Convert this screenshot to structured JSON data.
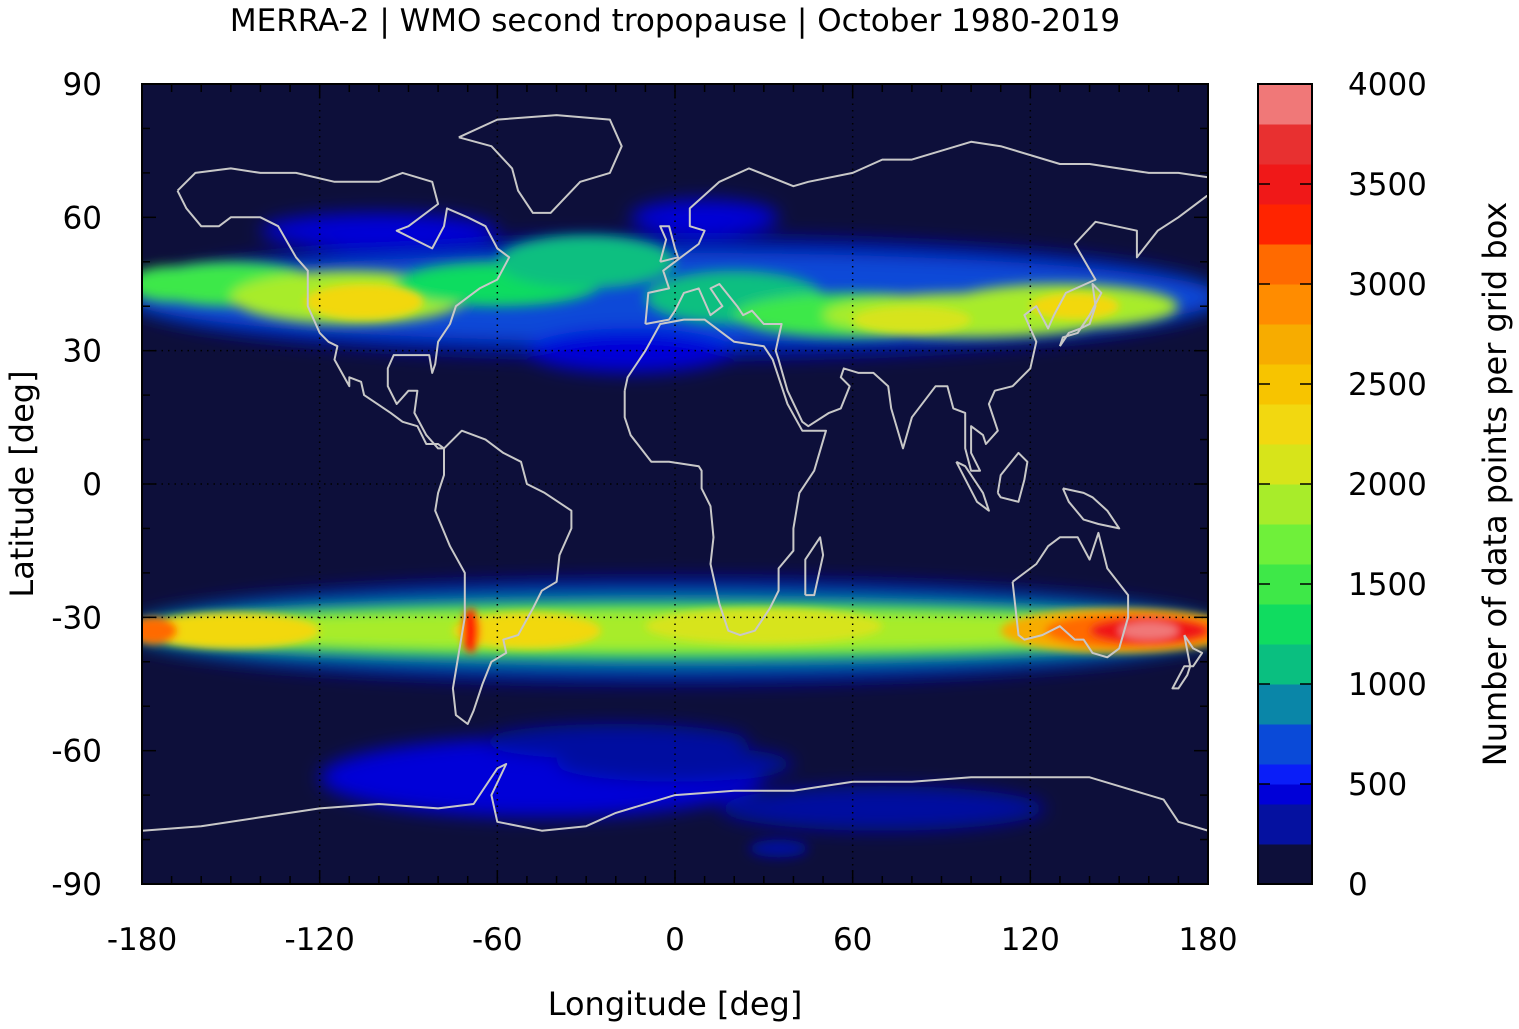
{
  "chart_data": {
    "type": "heatmap",
    "title": "MERRA-2 | WMO second tropopause | October 1980-2019",
    "xlabel": "Longitude [deg]",
    "ylabel": "Latitude [deg]",
    "colorbar_label": "Number of data points per grid box",
    "xlim": [
      -180,
      180
    ],
    "ylim": [
      -90,
      90
    ],
    "x_ticks": [
      -180,
      -120,
      -60,
      0,
      60,
      120,
      180
    ],
    "x_tick_labels": [
      "-180",
      "-120",
      "-60",
      "0",
      "60",
      "120",
      "180"
    ],
    "y_ticks": [
      90,
      60,
      30,
      0,
      -30,
      -60,
      -90
    ],
    "y_tick_labels": [
      "90",
      "60",
      "30",
      "0",
      "-30",
      "-60",
      "-90"
    ],
    "colorbar_ticks": [
      0,
      500,
      1000,
      1500,
      2000,
      2500,
      3000,
      3500,
      4000
    ],
    "colorbar_tick_labels": [
      "0",
      "500",
      "1000",
      "1500",
      "2000",
      "2500",
      "3000",
      "3500",
      "4000"
    ],
    "colorbar_range": [
      0,
      4000
    ],
    "levels": [
      0,
      200,
      400,
      500,
      600,
      800,
      1000,
      1200,
      1400,
      1600,
      1800,
      2000,
      2200,
      2400,
      2600,
      2800,
      3000,
      3200,
      3400,
      3600,
      3800,
      4000
    ],
    "level_colors": [
      "#0d0f3a",
      "#0511a0",
      "#0000d8",
      "#0a1ef8",
      "#0a4ad8",
      "#0a86a8",
      "#0abf80",
      "#10dc60",
      "#3ee848",
      "#6ff03a",
      "#a8ec2a",
      "#d7e41a",
      "#f2d810",
      "#f7c400",
      "#f7ac00",
      "#ff8c00",
      "#ff6a00",
      "#ff2400",
      "#f01818",
      "#e83030",
      "#f07878",
      "#ffcccc"
    ],
    "background_color": "#0d0f3a",
    "coastline_color": "#c8c8c8",
    "gridlines": "dotted at 0 deg and +/-30 deg latitude, 0/+/-60/+/-120 deg longitude",
    "bands": [
      {
        "region": "northern hemisphere",
        "lat_center": 40,
        "lat_range": [
          28,
          60
        ],
        "typical_max": 2300
      },
      {
        "region": "southern hemisphere",
        "lat_center": -33,
        "lat_range": [
          -45,
          -24
        ],
        "typical_max": 3900
      },
      {
        "region": "antarctic",
        "lat_center": -68,
        "lat_range": [
          -80,
          -60
        ],
        "typical_max": 600
      }
    ]
  }
}
